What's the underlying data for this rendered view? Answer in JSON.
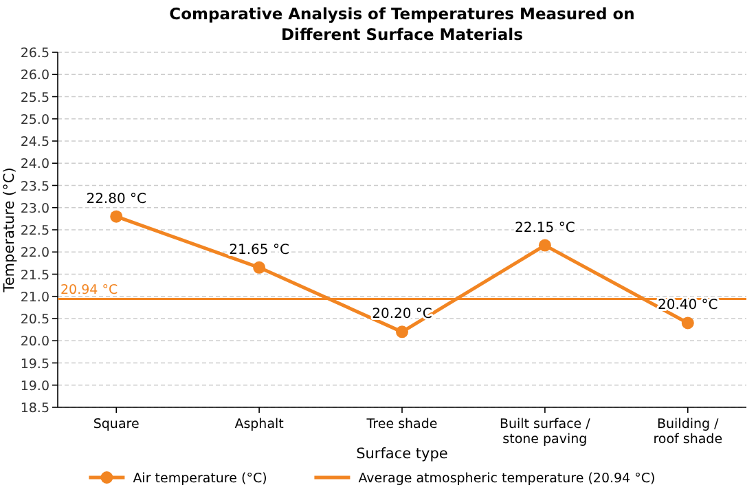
{
  "chart_data": {
    "type": "line",
    "title": "Comparative Analysis of Temperatures Measured on Different Surface Materials",
    "xlabel": "Surface type",
    "ylabel": "Temperature (°C)",
    "categories": [
      "Square",
      "Asphalt",
      "Tree shade",
      "Built surface / stone paving",
      "Building / roof shade"
    ],
    "series": [
      {
        "name": "Air temperature (°C)",
        "color": "#f28522",
        "values": [
          22.8,
          21.65,
          20.2,
          22.15,
          20.4
        ],
        "value_labels": [
          "22.80 °C",
          "21.65 °C",
          "20.20 °C",
          "22.15 °C",
          "20.40 °C"
        ]
      }
    ],
    "ref_lines": [
      {
        "axis": "y",
        "value": 20.94,
        "label": "Average atmospheric temperature (20.94 °C)",
        "color": "#f28522",
        "line_style": "solid"
      }
    ],
    "annotations": [
      {
        "text": "20.94 °C",
        "y": 20.94
      }
    ],
    "ylim": [
      18.5,
      26.5
    ],
    "yticks": [
      18.5,
      {
        "value": 19,
        "label": "19.0"
      },
      19.5,
      {
        "value": 20,
        "label": "20.0"
      },
      20.5,
      {
        "value": 21,
        "label": "21.0"
      },
      21.5,
      {
        "value": 22,
        "label": "22.0"
      },
      22.5,
      {
        "value": 23,
        "label": "23.0"
      },
      23.5,
      {
        "value": 24,
        "label": "24.0"
      },
      24.5,
      {
        "value": 25,
        "label": "25.0"
      },
      25.5,
      {
        "value": 26,
        "label": "26.0"
      },
      26.5
    ],
    "grid": "y",
    "legend": "bottom",
    "marker": "circle",
    "line_style": "solid"
  }
}
